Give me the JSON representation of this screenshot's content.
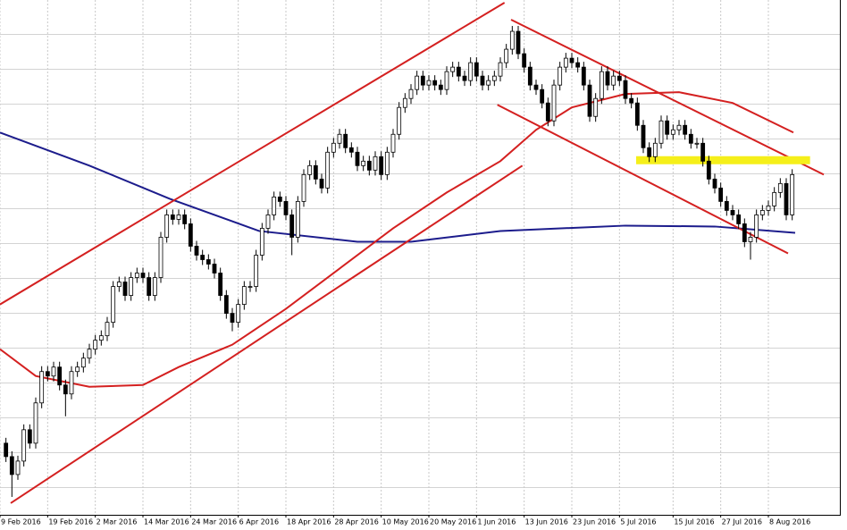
{
  "chart_data": {
    "type": "candlestick",
    "xlim": [
      -1,
      140
    ],
    "ylim": [
      0,
      575
    ],
    "grid": true,
    "xticks": [
      {
        "value": -1,
        "label": "9 Feb 2016"
      },
      {
        "value": 7,
        "label": "19 Feb 2016"
      },
      {
        "value": 15,
        "label": "2 Mar 2016"
      },
      {
        "value": 23,
        "label": "14 Mar 2016"
      },
      {
        "value": 31,
        "label": "24 Mar 2016"
      },
      {
        "value": 39,
        "label": "6 Apr 2016"
      },
      {
        "value": 47,
        "label": "18 Apr 2016"
      },
      {
        "value": 55,
        "label": "28 Apr 2016"
      },
      {
        "value": 63,
        "label": "10 May 2016"
      },
      {
        "value": 71,
        "label": "20 May 2016"
      },
      {
        "value": 79,
        "label": "1 Jun 2016"
      },
      {
        "value": 87,
        "label": "13 Jun 2016"
      },
      {
        "value": 95,
        "label": "23 Jun 2016"
      },
      {
        "value": 103,
        "label": "5 Jul 2016"
      },
      {
        "value": 112,
        "label": "15 Jul 2016"
      },
      {
        "value": 120,
        "label": "27 Jul 2016"
      },
      {
        "value": 128,
        "label": "8 Aug 2016"
      }
    ],
    "up_color": "#ffffff",
    "down_color": "#000000",
    "wick_color": "#000000",
    "open": [
      80,
      65,
      45,
      60,
      95,
      80,
      125,
      160,
      155,
      165,
      145,
      135,
      160,
      165,
      175,
      185,
      195,
      200,
      215,
      255,
      260,
      245,
      265,
      270,
      265,
      245,
      265,
      310,
      335,
      330,
      335,
      325,
      300,
      290,
      285,
      280,
      270,
      245,
      225,
      215,
      235,
      255,
      255,
      290,
      320,
      335,
      355,
      350,
      335,
      310,
      350,
      380,
      390,
      375,
      365,
      405,
      415,
      425,
      410,
      405,
      390,
      395,
      385,
      400,
      380,
      405,
      425,
      455,
      465,
      475,
      490,
      480,
      485,
      480,
      475,
      495,
      500,
      490,
      485,
      505,
      490,
      480,
      485,
      490,
      505,
      520,
      540,
      515,
      500,
      480,
      475,
      460,
      440,
      480,
      500,
      510,
      505,
      500,
      480,
      445,
      465,
      495,
      480,
      490,
      485,
      465,
      460,
      435,
      410,
      400,
      415,
      440,
      425,
      430,
      435,
      425,
      415,
      415,
      395,
      375,
      365,
      350,
      340,
      335,
      325,
      305,
      310,
      335,
      340,
      345,
      360,
      370,
      335
    ],
    "high": [
      86,
      71,
      66,
      101,
      101,
      131,
      166,
      166,
      171,
      171,
      151,
      166,
      171,
      181,
      191,
      201,
      206,
      221,
      261,
      266,
      266,
      271,
      276,
      276,
      271,
      271,
      316,
      341,
      341,
      341,
      341,
      331,
      306,
      296,
      291,
      286,
      276,
      251,
      231,
      241,
      261,
      261,
      296,
      326,
      341,
      361,
      361,
      356,
      341,
      356,
      386,
      396,
      396,
      381,
      411,
      421,
      431,
      431,
      416,
      411,
      401,
      401,
      406,
      406,
      411,
      431,
      461,
      471,
      481,
      496,
      496,
      491,
      491,
      486,
      501,
      506,
      506,
      496,
      511,
      511,
      496,
      491,
      496,
      511,
      526,
      546,
      546,
      521,
      506,
      486,
      481,
      466,
      486,
      506,
      516,
      516,
      511,
      506,
      486,
      471,
      501,
      501,
      496,
      496,
      491,
      471,
      466,
      441,
      416,
      421,
      446,
      446,
      436,
      441,
      441,
      431,
      421,
      421,
      401,
      381,
      371,
      356,
      346,
      341,
      331,
      316,
      341,
      346,
      351,
      366,
      376,
      376,
      386
    ],
    "low": [
      59,
      20,
      39,
      54,
      74,
      74,
      119,
      149,
      149,
      139,
      110,
      129,
      154,
      159,
      169,
      179,
      189,
      194,
      209,
      249,
      239,
      239,
      259,
      259,
      239,
      239,
      259,
      304,
      324,
      324,
      319,
      294,
      284,
      279,
      274,
      264,
      239,
      219,
      205,
      209,
      229,
      249,
      249,
      284,
      314,
      329,
      344,
      329,
      290,
      304,
      344,
      374,
      369,
      359,
      359,
      399,
      409,
      404,
      399,
      384,
      384,
      379,
      379,
      374,
      374,
      399,
      419,
      449,
      459,
      469,
      474,
      474,
      474,
      469,
      469,
      489,
      484,
      479,
      479,
      484,
      474,
      474,
      479,
      484,
      499,
      514,
      509,
      494,
      474,
      469,
      454,
      434,
      434,
      474,
      494,
      499,
      494,
      474,
      439,
      439,
      459,
      474,
      474,
      479,
      459,
      454,
      429,
      404,
      394,
      394,
      409,
      419,
      419,
      424,
      419,
      409,
      409,
      389,
      369,
      359,
      344,
      334,
      329,
      319,
      299,
      285,
      304,
      329,
      334,
      339,
      354,
      329,
      329
    ],
    "close": [
      65,
      45,
      60,
      95,
      80,
      125,
      160,
      155,
      165,
      145,
      135,
      160,
      165,
      175,
      185,
      195,
      200,
      215,
      255,
      260,
      245,
      265,
      270,
      265,
      245,
      265,
      310,
      335,
      330,
      335,
      325,
      300,
      290,
      285,
      280,
      270,
      245,
      225,
      215,
      235,
      255,
      255,
      290,
      320,
      335,
      355,
      350,
      335,
      310,
      350,
      380,
      390,
      375,
      365,
      405,
      415,
      425,
      410,
      405,
      390,
      395,
      385,
      400,
      380,
      405,
      425,
      455,
      465,
      475,
      490,
      480,
      485,
      480,
      475,
      495,
      500,
      490,
      485,
      505,
      490,
      480,
      485,
      490,
      505,
      520,
      540,
      515,
      500,
      480,
      475,
      460,
      440,
      480,
      500,
      510,
      505,
      500,
      480,
      445,
      465,
      495,
      480,
      490,
      485,
      465,
      460,
      435,
      410,
      400,
      415,
      440,
      425,
      430,
      435,
      425,
      415,
      415,
      395,
      375,
      365,
      350,
      340,
      335,
      325,
      305,
      310,
      335,
      340,
      345,
      360,
      370,
      335,
      380
    ],
    "overlays": [
      {
        "color": "#1c1c8c",
        "width": 2,
        "x": [
          -1,
          14,
          27.5,
          42.5,
          59,
          68,
          83,
          104,
          119,
          132.5
        ],
        "values": [
          427,
          390,
          353,
          317,
          305,
          305,
          317,
          323,
          322,
          315
        ]
      },
      {
        "color": "#d42020",
        "width": 2,
        "x": [
          -1,
          5,
          14,
          23,
          29,
          38,
          47,
          56,
          65,
          74,
          83,
          89,
          95,
          104,
          113,
          122,
          132.2
        ],
        "values": [
          185,
          155,
          143,
          145,
          165,
          190,
          230,
          275,
          320,
          360,
          395,
          430,
          455,
          470,
          472,
          460,
          427
        ]
      },
      {
        "color": "#d42020",
        "width": 2,
        "x": [
          -1,
          83.7
        ],
        "values": [
          235,
          572
        ]
      },
      {
        "color": "#d42020",
        "width": 2,
        "x": [
          0.8,
          86.7
        ],
        "values": [
          13,
          390
        ]
      },
      {
        "color": "#d42020",
        "width": 2,
        "x": [
          84.8,
          137.3
        ],
        "values": [
          553,
          380
        ]
      },
      {
        "color": "#d42020",
        "width": 2,
        "x": [
          82.5,
          131.3
        ],
        "values": [
          458,
          292
        ]
      },
      {
        "color": "#f5ef1a",
        "width": 9,
        "x": [
          105.8,
          135
        ],
        "values": [
          396,
          396
        ]
      }
    ]
  }
}
